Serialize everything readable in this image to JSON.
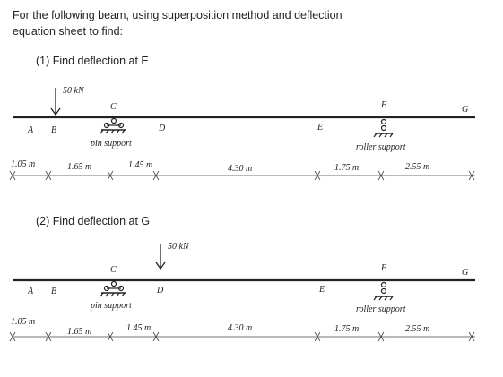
{
  "problem": {
    "intro_line1": "For the following beam, using superposition method and deflection",
    "intro_line2": "equation sheet to find:",
    "part1": "(1)  Find deflection at E",
    "part2": "(2)  Find deflection at G"
  },
  "beam1": {
    "load": "50 kN",
    "points": {
      "A": "A",
      "B": "B",
      "C": "C",
      "D": "D",
      "E": "E",
      "F": "F",
      "G": "G"
    },
    "pin_label": "pin support",
    "roller_label": "roller support",
    "dims": [
      "1.05 m",
      "1.65 m",
      "1.45 m",
      "4.30 m",
      "1.75 m",
      "2.55 m"
    ]
  },
  "beam2": {
    "load": "50 kN",
    "points": {
      "A": "A",
      "B": "B",
      "C": "C",
      "D": "D",
      "E": "E",
      "F": "F",
      "G": "G"
    },
    "pin_label": "pin support",
    "roller_label": "roller support",
    "dims": [
      "1.05 m",
      "1.65 m",
      "1.45 m",
      "4.30 m",
      "1.75 m",
      "2.55 m"
    ]
  }
}
